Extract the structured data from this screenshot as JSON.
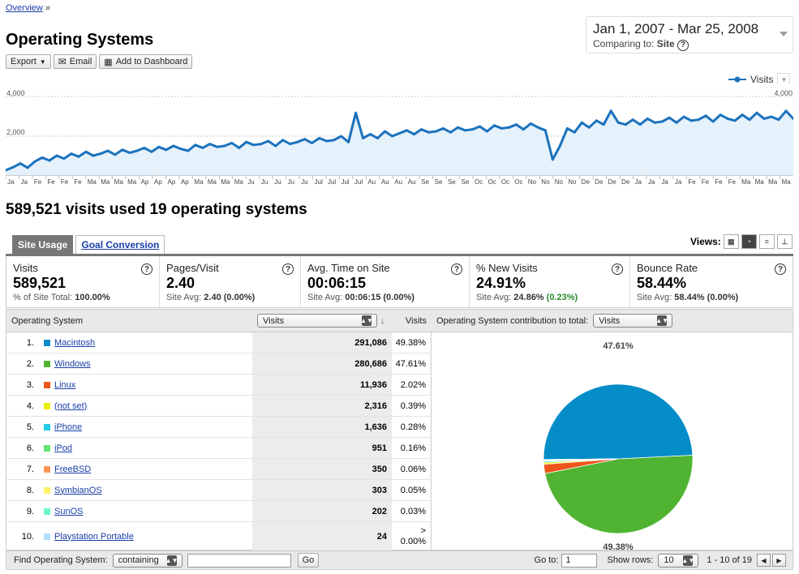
{
  "breadcrumb": {
    "link": "Overview",
    "sep": "»"
  },
  "page_title": "Operating Systems",
  "toolbar": {
    "export": "Export",
    "email": "Email",
    "dashboard": "Add to Dashboard"
  },
  "date_range": {
    "range": "Jan 1, 2007 - Mar 25, 2008",
    "comparing_label": "Comparing to:",
    "comparing_value": "Site"
  },
  "graph_legend": "Visits",
  "chart_data": {
    "type": "line",
    "series": [
      {
        "name": "Visits",
        "values": [
          250,
          400,
          600,
          380,
          700,
          900,
          750,
          1000,
          850,
          1100,
          950,
          1200,
          1000,
          1100,
          1250,
          1050,
          1300,
          1150,
          1250,
          1400,
          1200,
          1450,
          1300,
          1500,
          1350,
          1250,
          1550,
          1400,
          1600,
          1450,
          1500,
          1650,
          1400,
          1700,
          1550,
          1600,
          1750,
          1500,
          1800,
          1600,
          1700,
          1850,
          1650,
          1900,
          1750,
          1800,
          2000,
          1700,
          3200,
          1900,
          2100,
          1900,
          2250,
          2000,
          2150,
          2300,
          2100,
          2350,
          2200,
          2250,
          2400,
          2200,
          2450,
          2300,
          2350,
          2500,
          2250,
          2550,
          2400,
          2450,
          2600,
          2350,
          2650,
          2450,
          2300,
          800,
          1500,
          2400,
          2200,
          2700,
          2450,
          2800,
          2600,
          3300,
          2700,
          2600,
          2850,
          2600,
          2900,
          2700,
          2750,
          2950,
          2700,
          3000,
          2800,
          2850,
          3050,
          2750,
          3100,
          2900,
          2800,
          3100,
          2850,
          3200,
          2900,
          3000,
          2850,
          3300,
          2900
        ]
      }
    ],
    "ylim": [
      0,
      4000
    ],
    "y_ticks": [
      "4,000",
      "2,000"
    ],
    "x_tick_labels": [
      "Ja",
      "Ja",
      "Fe",
      "Fe",
      "Fe",
      "Fe",
      "Ma",
      "Ma",
      "Ma",
      "Ma",
      "Ap",
      "Ap",
      "Ap",
      "Ap",
      "Ma",
      "Ma",
      "Ma",
      "Ma",
      "Ju",
      "Ju",
      "Ju",
      "Ju",
      "Ju",
      "Jul",
      "Jul",
      "Jul",
      "Jul",
      "Au",
      "Au",
      "Au",
      "Au",
      "Se",
      "Se",
      "Se",
      "Se",
      "Oc",
      "Oc",
      "Oc",
      "Oc",
      "No",
      "No",
      "No",
      "No",
      "De",
      "De",
      "De",
      "De",
      "Ja",
      "Ja",
      "Ja",
      "Ja",
      "Fe",
      "Fe",
      "Fe",
      "Fe",
      "Ma",
      "Ma",
      "Ma",
      "Ma"
    ],
    "grid": true
  },
  "headline": "589,521 visits used 19 operating systems",
  "tabs": [
    {
      "label": "Site Usage"
    },
    {
      "label": "Goal Conversion"
    }
  ],
  "views_label": "Views:",
  "metrics": [
    {
      "label": "Visits",
      "value": "589,521",
      "sub_label": "% of Site Total:",
      "sub_value": "100.00%",
      "sub_delta": ""
    },
    {
      "label": "Pages/Visit",
      "value": "2.40",
      "sub_label": "Site Avg:",
      "sub_value": "2.40",
      "sub_delta": "(0.00%)"
    },
    {
      "label": "Avg. Time on Site",
      "value": "00:06:15",
      "sub_label": "Site Avg:",
      "sub_value": "00:06:15",
      "sub_delta": "(0.00%)"
    },
    {
      "label": "% New Visits",
      "value": "24.91%",
      "sub_label": "Site Avg:",
      "sub_value": "24.86%",
      "sub_delta": "(0.23%)"
    },
    {
      "label": "Bounce Rate",
      "value": "58.44%",
      "sub_label": "Site Avg:",
      "sub_value": "58.44%",
      "sub_delta": "(0.00%)"
    }
  ],
  "table": {
    "col_os": "Operating System",
    "col_select": "Visits",
    "col_visits": "Visits",
    "contribution_label": "Operating System contribution to total:",
    "contribution_select": "Visits",
    "rows": [
      {
        "idx": "1.",
        "name": "Macintosh",
        "visits": "291,086",
        "pct": "49.38%",
        "color": "#058dc7"
      },
      {
        "idx": "2.",
        "name": "Windows",
        "visits": "280,686",
        "pct": "47.61%",
        "color": "#50b432"
      },
      {
        "idx": "3.",
        "name": "Linux",
        "visits": "11,936",
        "pct": "2.02%",
        "color": "#ed561b"
      },
      {
        "idx": "4.",
        "name": "(not set)",
        "visits": "2,316",
        "pct": "0.39%",
        "color": "#edef00"
      },
      {
        "idx": "5.",
        "name": "iPhone",
        "visits": "1,636",
        "pct": "0.28%",
        "color": "#24cbe5"
      },
      {
        "idx": "6.",
        "name": "iPod",
        "visits": "951",
        "pct": "0.16%",
        "color": "#64e572"
      },
      {
        "idx": "7.",
        "name": "FreeBSD",
        "visits": "350",
        "pct": "0.06%",
        "color": "#ff9655"
      },
      {
        "idx": "8.",
        "name": "SymbianOS",
        "visits": "303",
        "pct": "0.05%",
        "color": "#fff263"
      },
      {
        "idx": "9.",
        "name": "SunOS",
        "visits": "202",
        "pct": "0.03%",
        "color": "#6af9c4"
      },
      {
        "idx": "10.",
        "name": "Playstation Portable",
        "visits": "24",
        "pct": "0.00%",
        "pct_prefix": ">",
        "color": "#b2deff"
      }
    ]
  },
  "pie": {
    "label_top": "47.61%",
    "label_bottom": "49.38%"
  },
  "footer": {
    "find_label": "Find Operating System:",
    "find_mode": "containing",
    "go_button": "Go",
    "goto_label": "Go to:",
    "goto_value": "1",
    "show_rows_label": "Show rows:",
    "show_rows_value": "10",
    "range_text": "1 - 10 of 19"
  }
}
